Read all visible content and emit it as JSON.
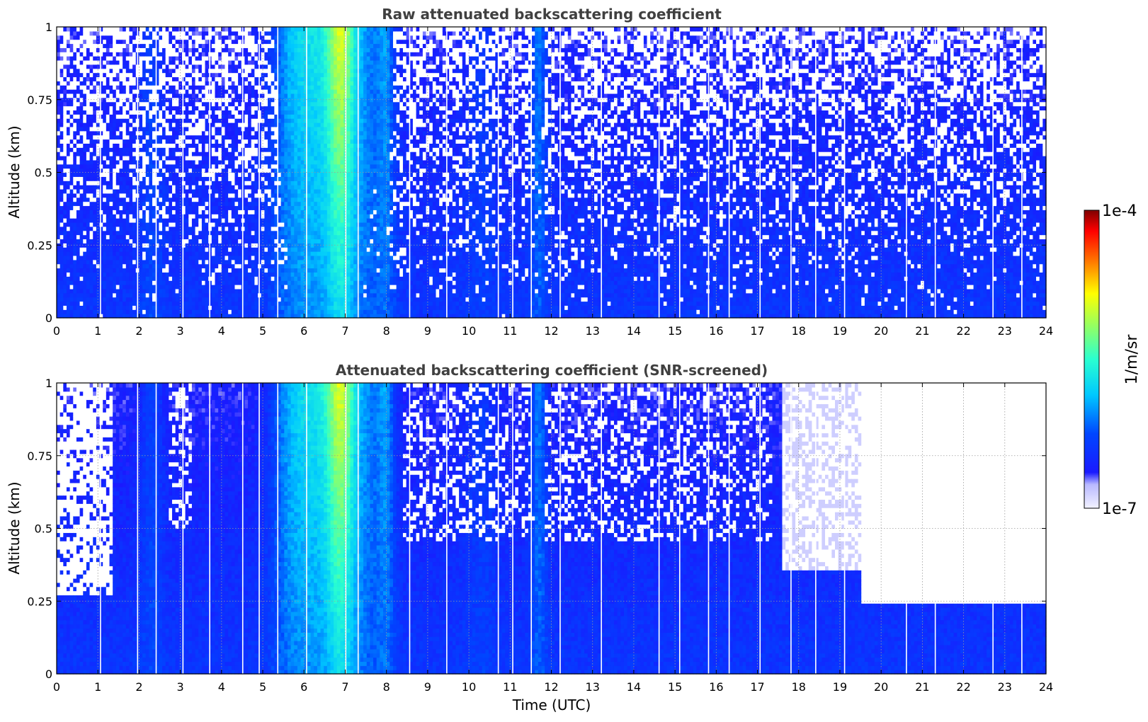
{
  "chart_data": [
    {
      "type": "heatmap",
      "title": "Raw attenuated backscattering coefficient",
      "xlabel": "",
      "ylabel": "Altitude (km)",
      "xlim": [
        0,
        24
      ],
      "ylim": [
        0,
        1
      ],
      "xticks": [
        "0",
        "1",
        "2",
        "3",
        "4",
        "5",
        "6",
        "7",
        "8",
        "9",
        "10",
        "11",
        "12",
        "13",
        "14",
        "15",
        "16",
        "17",
        "18",
        "19",
        "20",
        "21",
        "22",
        "23",
        "24"
      ],
      "yticks": [
        "0",
        "0.25",
        "0.5",
        "0.75",
        "1"
      ],
      "grid": true,
      "colormap": "jet",
      "color_scale": "log",
      "value_range": [
        1e-07,
        0.0001
      ],
      "screened": false
    },
    {
      "type": "heatmap",
      "title": "Attenuated backscattering coefficient (SNR-screened)",
      "xlabel": "Time (UTC)",
      "ylabel": "Altitude (km)",
      "xlim": [
        0,
        24
      ],
      "ylim": [
        0,
        1
      ],
      "xticks": [
        "0",
        "1",
        "2",
        "3",
        "4",
        "5",
        "6",
        "7",
        "8",
        "9",
        "10",
        "11",
        "12",
        "13",
        "14",
        "15",
        "16",
        "17",
        "18",
        "19",
        "20",
        "21",
        "22",
        "23",
        "24"
      ],
      "yticks": [
        "0",
        "0.25",
        "0.5",
        "0.75",
        "1"
      ],
      "grid": true,
      "colormap": "jet",
      "color_scale": "log",
      "value_range": [
        1e-07,
        0.0001
      ],
      "screened": true
    }
  ],
  "colorbar": {
    "label": "1/m/sr",
    "max_label": "1e-4",
    "min_label": "1e-7"
  }
}
